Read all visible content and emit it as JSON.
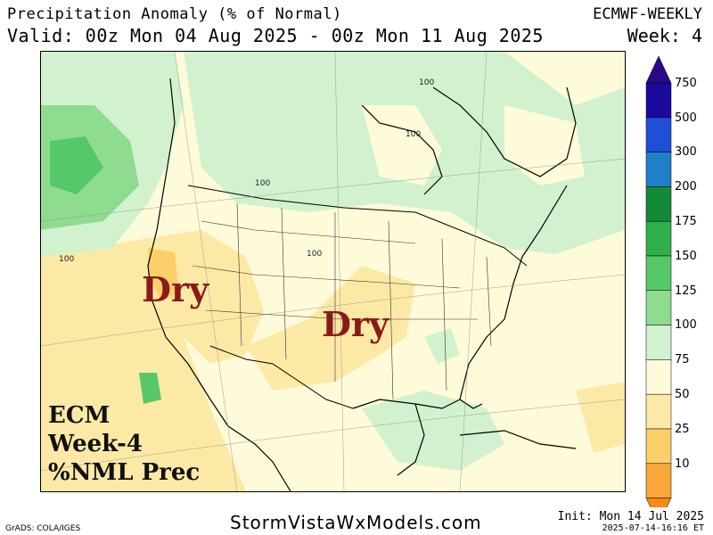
{
  "header": {
    "title": "Precipitation Anomaly (% of Normal)",
    "model": "ECMWF-WEEKLY",
    "valid": "Valid: 00z Mon 04 Aug 2025 - 00z Mon 11 Aug 2025",
    "week": "Week: 4"
  },
  "map": {
    "annotations": {
      "dry_west": "Dry",
      "dry_central": "Dry",
      "model_line": "ECM",
      "week_line": "Week-4",
      "product_line": "%NML Prec"
    },
    "contour_labels": [
      "100",
      "100",
      "100",
      "100",
      "100"
    ]
  },
  "colorbar": {
    "levels": [
      {
        "label": "750",
        "color": "#1a0a9e"
      },
      {
        "label": "500",
        "color": "#1f4fd6"
      },
      {
        "label": "300",
        "color": "#1f7fc8"
      },
      {
        "label": "200",
        "color": "#138a3a"
      },
      {
        "label": "175",
        "color": "#30b04a"
      },
      {
        "label": "150",
        "color": "#56c86a"
      },
      {
        "label": "125",
        "color": "#8fdc90"
      },
      {
        "label": "100",
        "color": "#d2f2cf"
      },
      {
        "label": "75",
        "color": "#fdfbd9"
      },
      {
        "label": "50",
        "color": "#fde9a6"
      },
      {
        "label": "25",
        "color": "#fbd06a"
      },
      {
        "label": "10",
        "color": "#f9a93a"
      }
    ],
    "top_color": "#2a0a8a",
    "bottom_color": "#f58a14"
  },
  "footer": {
    "credit": "GrADS: COLA/IGES",
    "site": "StormVistaWxModels.com",
    "init": "Init: Mon 14 Jul 2025",
    "timestamp": "2025-07-14-16:16 ET"
  }
}
